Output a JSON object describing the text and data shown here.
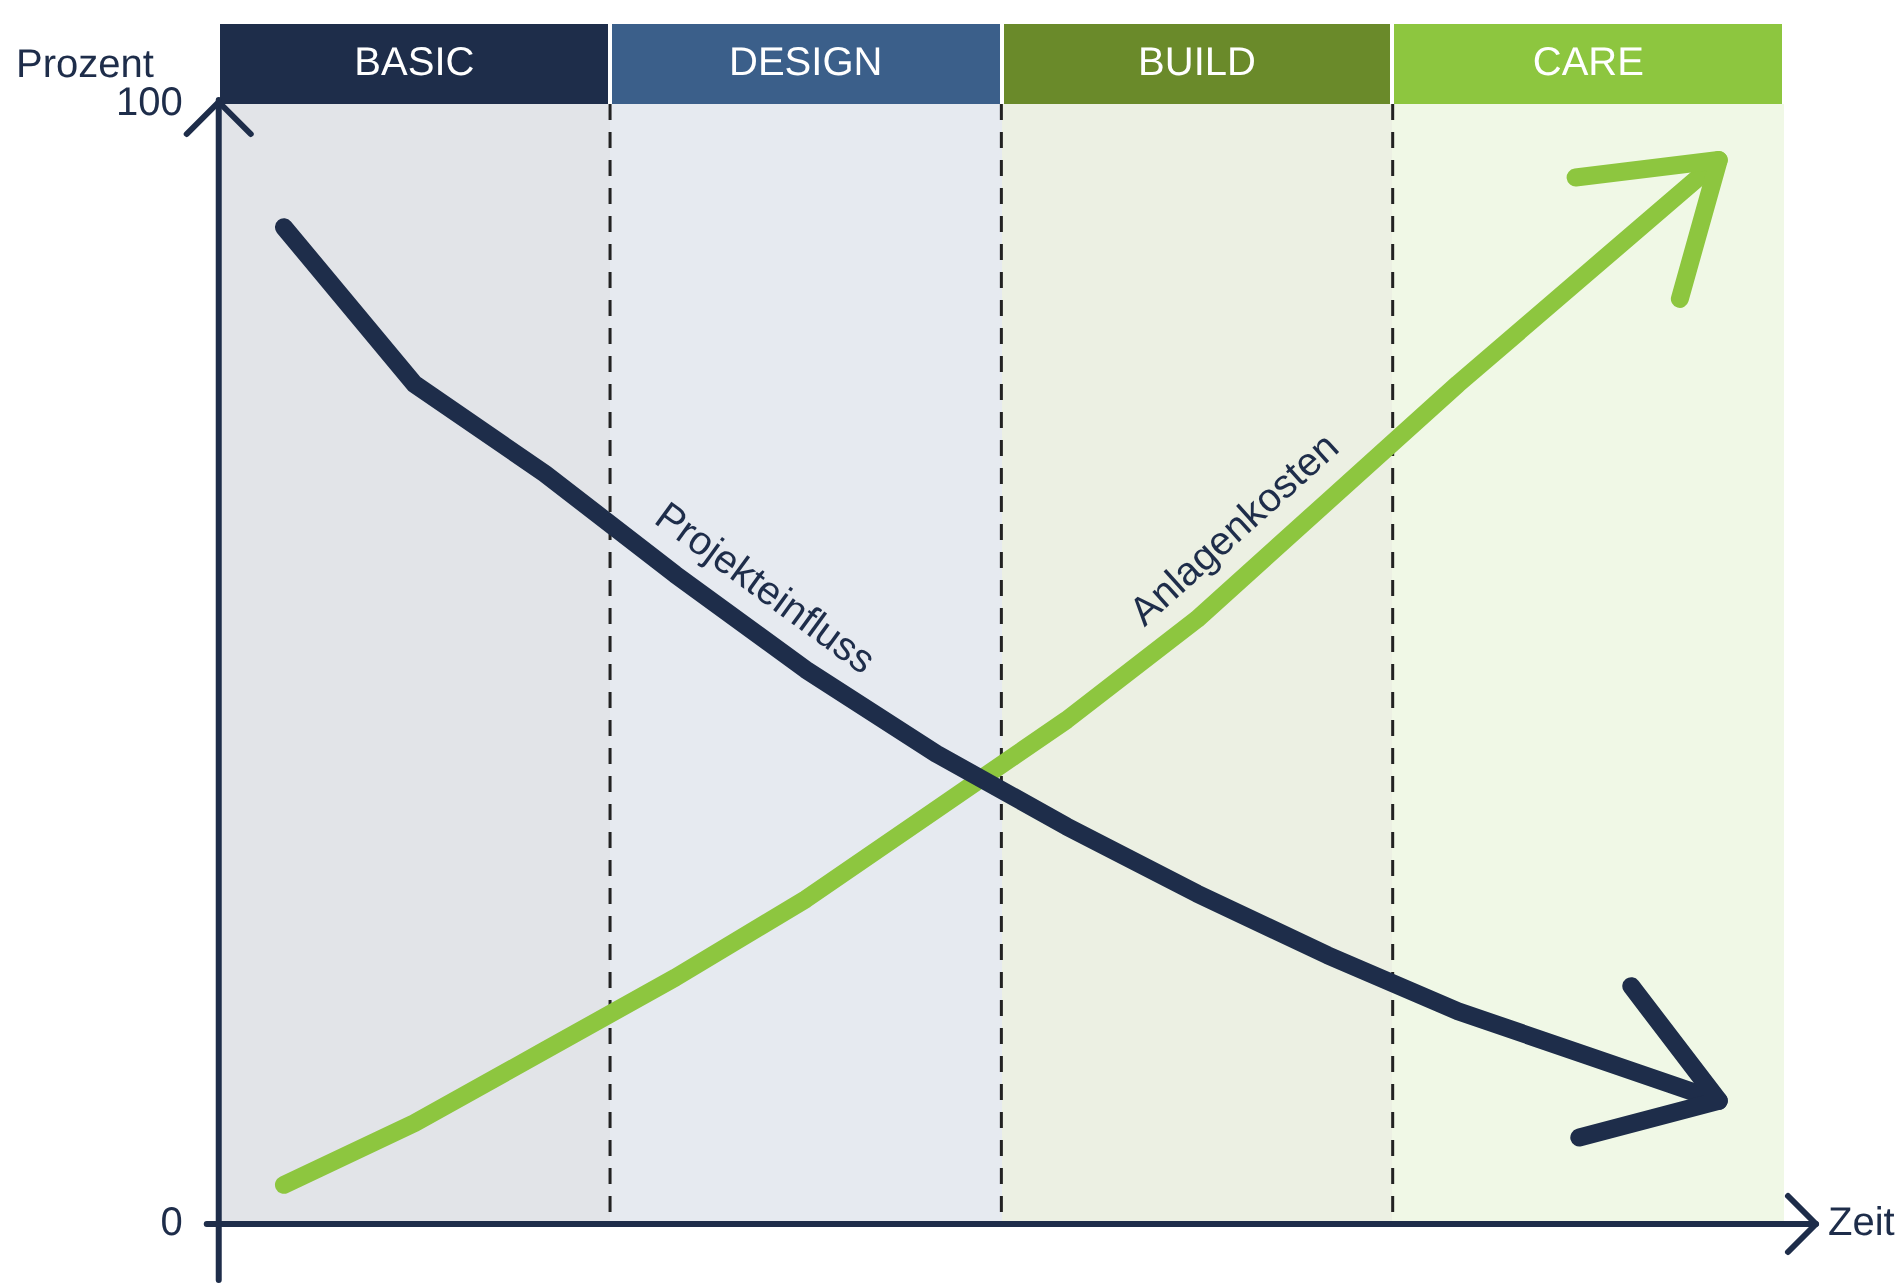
{
  "chart_data": {
    "type": "line",
    "ylabel": "Prozent",
    "xlabel": "Zeit",
    "categories": [
      null,
      "BASIC",
      null,
      null,
      "DESIGN",
      null,
      null,
      "BUILD",
      null,
      null,
      "CARE",
      null
    ],
    "ylim": [
      0,
      100
    ],
    "yticks": [
      0,
      100
    ],
    "grid": false,
    "legend": false,
    "marker": "none",
    "line_style": "solid",
    "series": [
      {
        "name": "Projekteinfluss",
        "color": "#1e2d4a",
        "values": [
          89,
          75,
          67,
          58,
          49.5,
          42,
          35.5,
          29.5,
          24,
          19,
          15,
          11
        ]
      },
      {
        "name": "Anlagenkosten",
        "color": "#8dc63f",
        "values": [
          3.5,
          9,
          15.5,
          22,
          29,
          37,
          45,
          54,
          64.5,
          75,
          85,
          95
        ]
      }
    ]
  }
}
